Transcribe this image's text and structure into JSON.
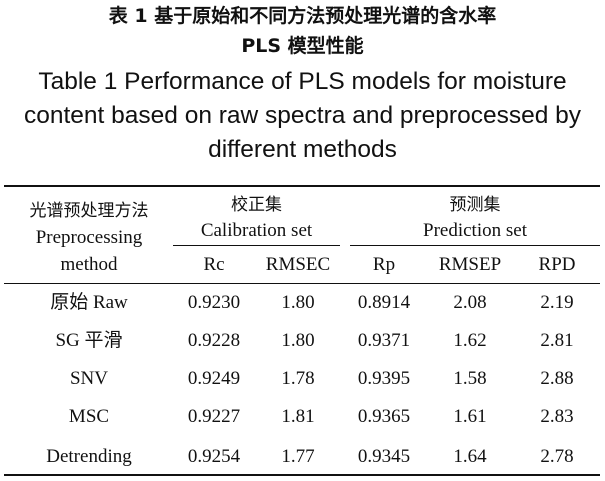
{
  "caption": {
    "cn_line1": "表 1  基于原始和不同方法预处理光谱的含水率",
    "cn_line2": "PLS 模型性能",
    "en_line1": "Table 1  Performance of PLS models for moisture",
    "en_line2": "content based on raw spectra and preprocessed by",
    "en_line3": "different methods"
  },
  "header": {
    "method_cn": "光谱预处理方法",
    "method_en1": "Preprocessing",
    "method_en2": "method",
    "calibration_cn": "校正集",
    "calibration_en": "Calibration set",
    "prediction_cn": "预测集",
    "prediction_en": "Prediction set",
    "col_rc": "Rc",
    "col_rmsec": "RMSEC",
    "col_rp": "Rp",
    "col_rmsep": "RMSEP",
    "col_rpd": "RPD"
  },
  "rows": [
    {
      "method": "原始 Raw",
      "rc": "0.9230",
      "rmsec": "1.80",
      "rp": "0.8914",
      "rmsep": "2.08",
      "rpd": "2.19"
    },
    {
      "method": "SG 平滑",
      "rc": "0.9228",
      "rmsec": "1.80",
      "rp": "0.9371",
      "rmsep": "1.62",
      "rpd": "2.81"
    },
    {
      "method": "SNV",
      "rc": "0.9249",
      "rmsec": "1.78",
      "rp": "0.9395",
      "rmsep": "1.58",
      "rpd": "2.88"
    },
    {
      "method": "MSC",
      "rc": "0.9227",
      "rmsec": "1.81",
      "rp": "0.9365",
      "rmsep": "1.61",
      "rpd": "2.83"
    },
    {
      "method": "Detrending",
      "rc": "0.9254",
      "rmsec": "1.77",
      "rp": "0.9345",
      "rmsep": "1.64",
      "rpd": "2.78"
    }
  ]
}
